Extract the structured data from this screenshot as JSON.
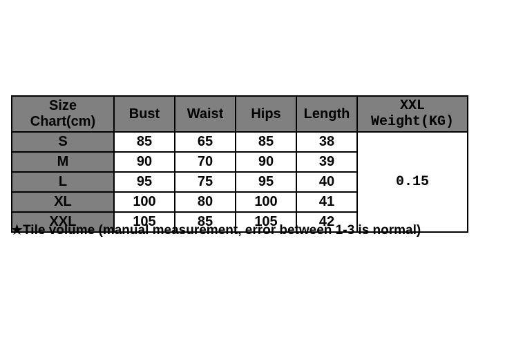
{
  "size_chart": {
    "type": "table",
    "columns": [
      "Size Chart(cm)",
      "Bust",
      "Waist",
      "Hips",
      "Length",
      "XXL Weight(KG)"
    ],
    "rows": [
      {
        "size": "S",
        "bust": "85",
        "waist": "65",
        "hips": "85",
        "length": "38"
      },
      {
        "size": "M",
        "bust": "90",
        "waist": "70",
        "hips": "90",
        "length": "39"
      },
      {
        "size": "L",
        "bust": "95",
        "waist": "75",
        "hips": "95",
        "length": "40"
      },
      {
        "size": "XL",
        "bust": "100",
        "waist": "80",
        "hips": "100",
        "length": "41"
      },
      {
        "size": "XXL",
        "bust": "105",
        "waist": "85",
        "hips": "105",
        "length": "42"
      }
    ],
    "weight_value": "0.15",
    "header_bg": "#808080",
    "size_col_bg": "#808080",
    "cell_bg": "#ffffff",
    "border_color": "#000000",
    "text_color": "#000000",
    "header_fontsize": 18,
    "cell_fontsize": 20
  },
  "footnote": {
    "star": "★",
    "text": "Tile volume (manual measurement, error between 1-3 is normal)",
    "fontsize": 19,
    "color": "#000000"
  }
}
